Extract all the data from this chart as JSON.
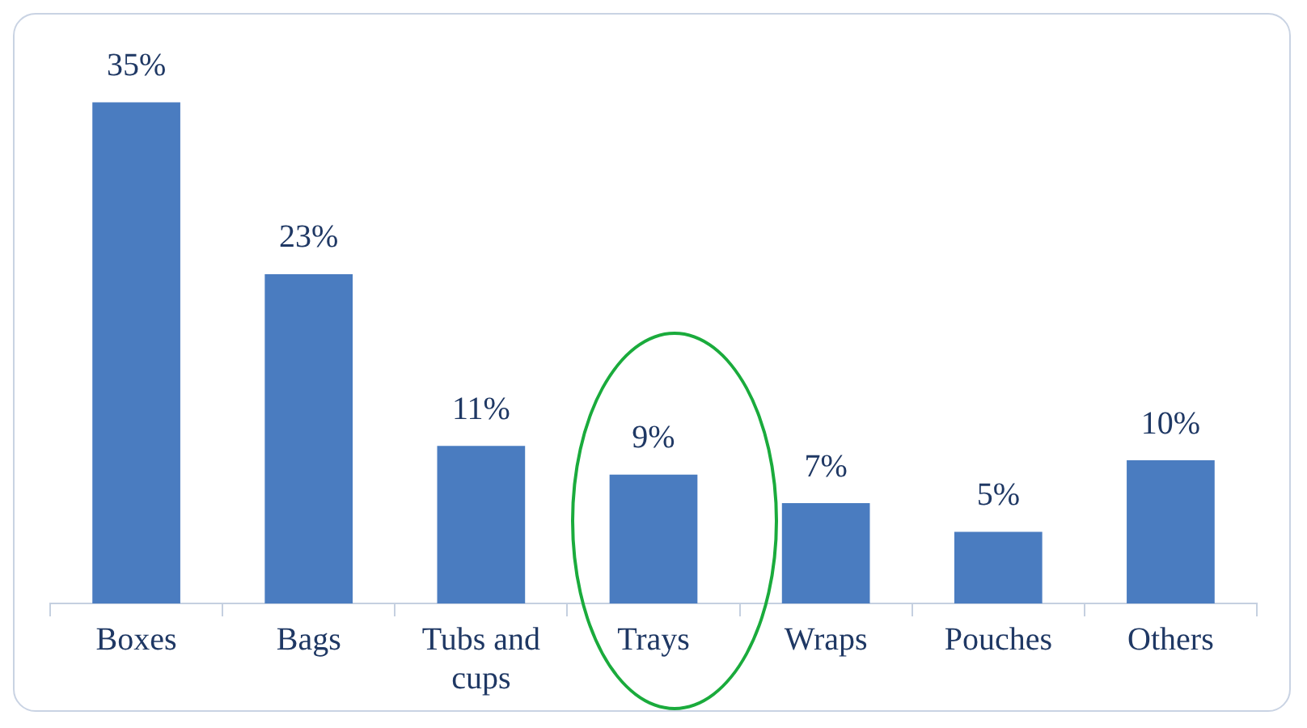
{
  "chart_data": {
    "type": "bar",
    "categories": [
      "Boxes",
      "Bags",
      "Tubs and cups",
      "Trays",
      "Wraps",
      "Pouches",
      "Others"
    ],
    "values": [
      35,
      23,
      11,
      9,
      7,
      5,
      10
    ],
    "value_labels": [
      "35%",
      "23%",
      "11%",
      "9%",
      "7%",
      "5%",
      "10%"
    ],
    "color": "#4a7cc0",
    "grid": false,
    "legend": false
  }
}
